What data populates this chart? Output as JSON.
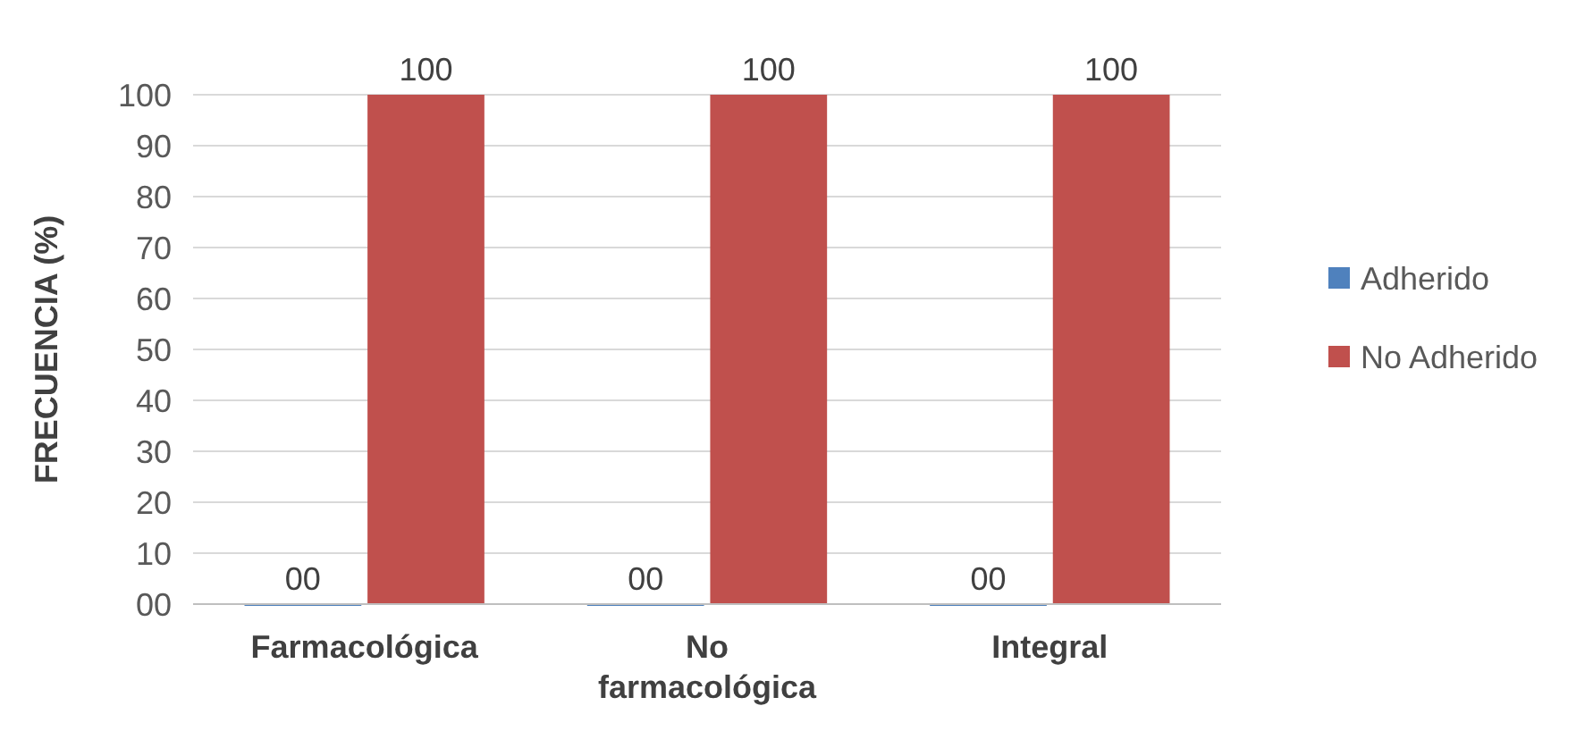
{
  "chart_data": {
    "type": "bar",
    "ylabel": "FRECUENCIA (%)",
    "categories": [
      "Farmacológica",
      "No farmacológica",
      "Integral"
    ],
    "series": [
      {
        "name": "Adherido",
        "color": "#4f81bd",
        "values": [
          0,
          0,
          0
        ],
        "value_labels": [
          "00",
          "00",
          "00"
        ]
      },
      {
        "name": "No Adherido",
        "color": "#c0504d",
        "values": [
          100,
          100,
          100
        ],
        "value_labels": [
          "100",
          "100",
          "100"
        ]
      }
    ],
    "ylim": [
      0,
      100
    ],
    "yticks": [
      {
        "value": 0,
        "label": "00"
      },
      10,
      20,
      30,
      40,
      50,
      60,
      70,
      80,
      90,
      100
    ],
    "grid": "y",
    "legend": "right"
  }
}
